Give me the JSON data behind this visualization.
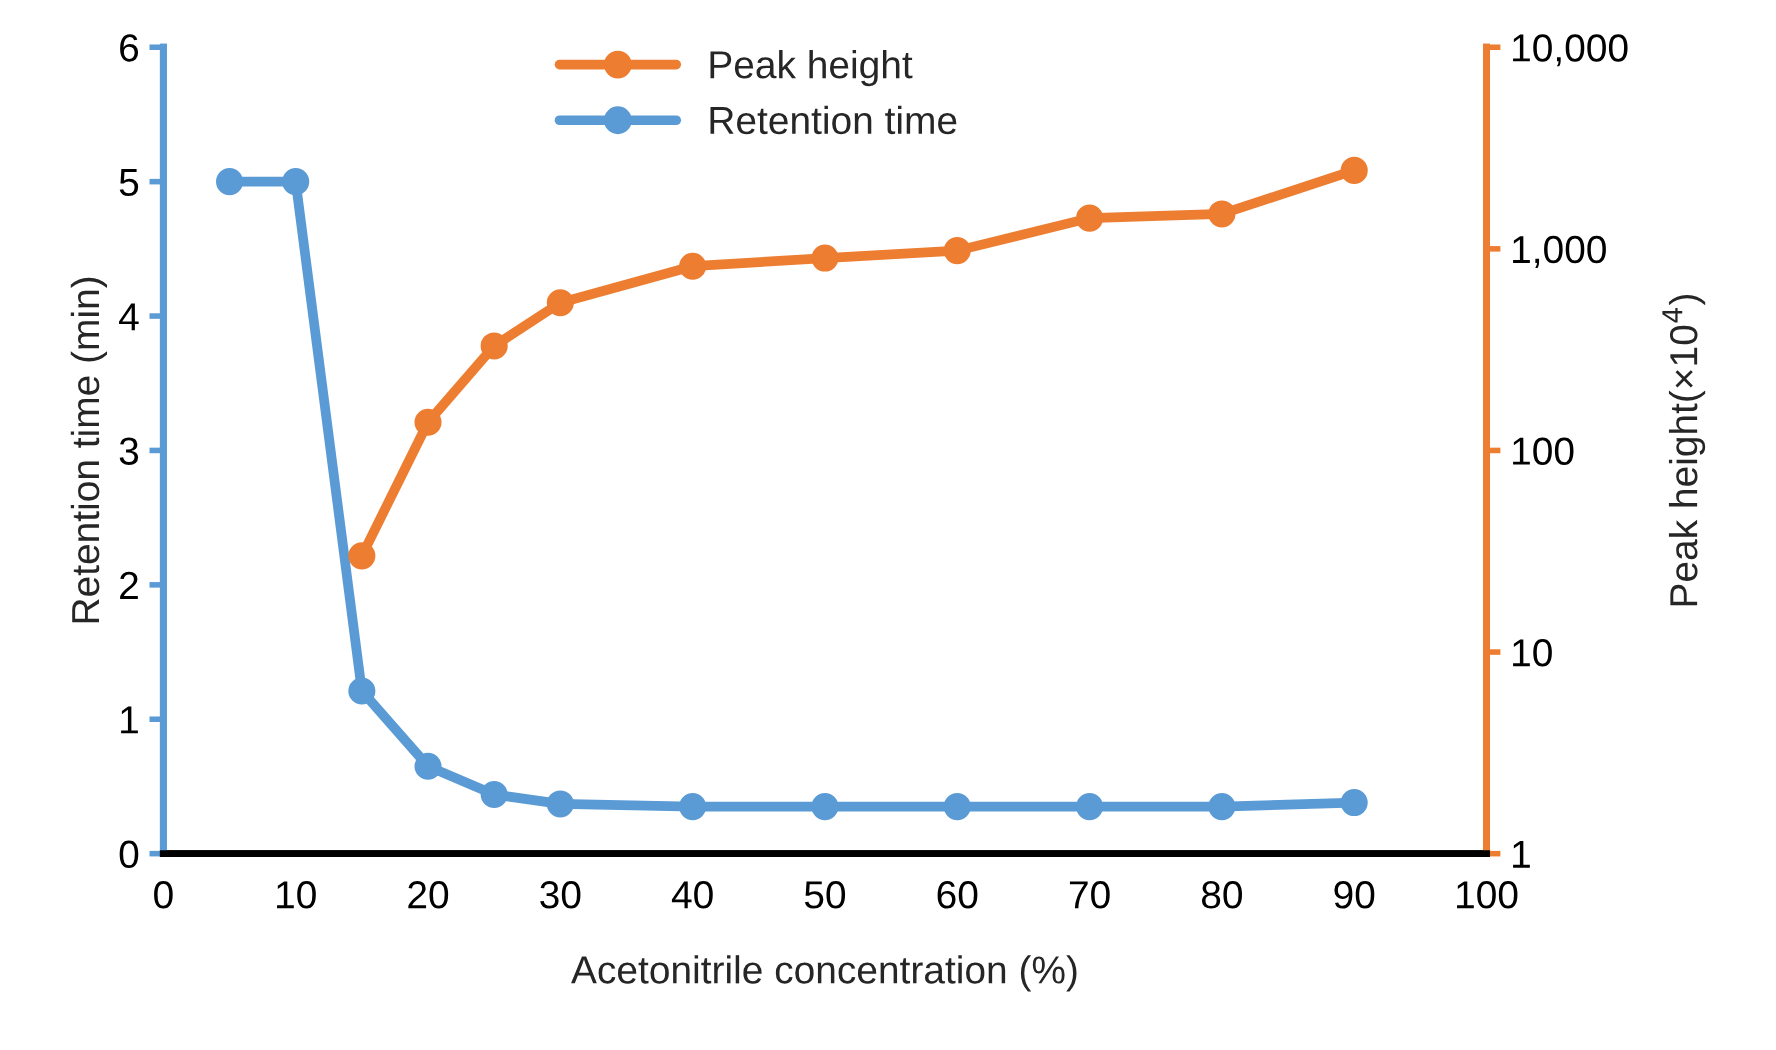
{
  "chart_data": {
    "type": "line",
    "xlabel": "Acetonitrile concentration (%)",
    "ylabel": "Retention time (min)",
    "y2label": "Peak height(×10$^{4}$)",
    "x": [
      5,
      10,
      15,
      20,
      25,
      30,
      40,
      50,
      60,
      70,
      80,
      90
    ],
    "series": [
      {
        "name": "Peak height",
        "color": "#ed7d31",
        "axis": "y2",
        "values": [
          null,
          null,
          30,
          138,
          330,
          540,
          820,
          900,
          980,
          1420,
          1490,
          2450
        ]
      },
      {
        "name": "Retention time",
        "color": "#5b9bd5",
        "values": [
          5.0,
          5.0,
          1.21,
          0.65,
          0.44,
          0.37,
          0.35,
          0.35,
          0.35,
          0.35,
          0.35,
          0.38
        ]
      }
    ],
    "xlim": [
      0,
      100
    ],
    "xticks": [
      0,
      10,
      20,
      30,
      40,
      50,
      60,
      70,
      80,
      90,
      100
    ],
    "ylim": [
      0,
      6
    ],
    "yticks": [
      0,
      1,
      2,
      3,
      4,
      5,
      6
    ],
    "log": "y2",
    "y2lim": [
      1,
      10000
    ],
    "y2ticks": [
      1,
      10,
      100,
      {
        "value": 1000,
        "label": "1,000"
      },
      {
        "value": 10000,
        "label": "10,000"
      }
    ],
    "marker": "circle",
    "line_style": "solid",
    "grid": false,
    "legend": "top"
  }
}
